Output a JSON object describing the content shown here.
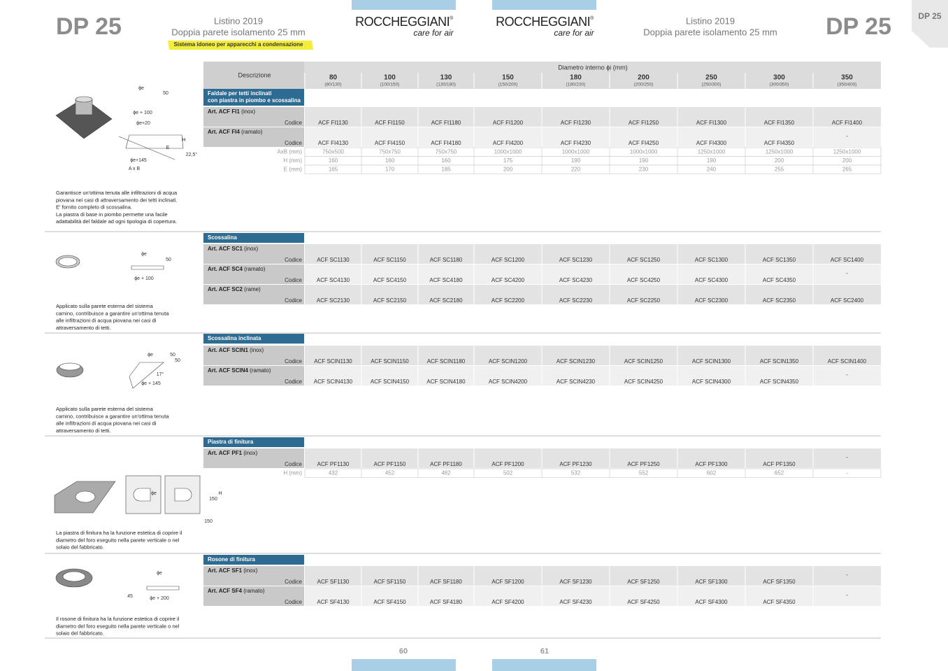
{
  "header": {
    "left": {
      "code": "DP 25",
      "title": "Listino 2019",
      "subtitle": "Doppia parete isolamento 25 mm",
      "badge": "Sistema idoneo per apparecchi a condensazione"
    },
    "brands": [
      {
        "name": "ROCCHEGGIANI",
        "mark": "®",
        "tagline": "care for air"
      },
      {
        "name": "ROCCHEGGIANI",
        "mark": "®",
        "tagline": "care for air"
      }
    ],
    "right": {
      "code": "DP 25",
      "title": "Listino 2019",
      "subtitle": "Doppia parete isolamento 25 mm"
    },
    "tab": "DP 25"
  },
  "table_header": {
    "description": "Descrizione",
    "diameter": "Diametro interno ϕi (mm)",
    "diameters": [
      {
        "value": "80",
        "range": "(80/130)"
      },
      {
        "value": "100",
        "range": "(100/150)"
      },
      {
        "value": "130",
        "range": "(130/180)"
      },
      {
        "value": "150",
        "range": "(150/200)"
      },
      {
        "value": "180",
        "range": "(180/230)"
      },
      {
        "value": "200",
        "range": "(200/250)"
      },
      {
        "value": "250",
        "range": "(250/300)"
      },
      {
        "value": "300",
        "range": "(300/350)"
      },
      {
        "value": "350",
        "range": "(350/400)"
      }
    ]
  },
  "sections": [
    {
      "title": [
        "Faldale per tetti inclinati",
        "con piastra in piombo e scossalina"
      ],
      "rows": [
        {
          "article": "Art. ACF FI1",
          "material": " (inox)",
          "code_label": "Codice",
          "codes": [
            "ACF FI1130",
            "ACF FI1150",
            "ACF FI1180",
            "ACF FI1200",
            "ACF FI1230",
            "ACF FI1250",
            "ACF FI1300",
            "ACF FI1350",
            "ACF FI1400"
          ]
        },
        {
          "article": "Art. ACF FI4",
          "material": " (ramato)",
          "code_label": "Codice",
          "codes": [
            "ACF FI4130",
            "ACF FI4150",
            "ACF FI4180",
            "ACF FI4200",
            "ACF FI4230",
            "ACF FI4250",
            "ACF FI4300",
            "ACF FI4350",
            "-"
          ]
        }
      ],
      "measures": [
        {
          "label": "AxB (mm)",
          "values": [
            "750x500",
            "750x750",
            "750x750",
            "1000x1000",
            "1000x1000",
            "1000x1000",
            "1250x1000",
            "1250x1000",
            "1250x1000"
          ]
        },
        {
          "label": "H (mm)",
          "values": [
            "160",
            "160",
            "160",
            "175",
            "190",
            "190",
            "190",
            "200",
            "200"
          ]
        },
        {
          "label": "E (mm)",
          "values": [
            "165",
            "170",
            "185",
            "200",
            "220",
            "230",
            "240",
            "255",
            "265"
          ]
        }
      ],
      "description": [
        "Garantisce un'ottima tenuta alle infiltrazioni di acqua",
        "piovana nei casi di attraversamento dei tetti inclinati.",
        "E' fornito completo di scossalina.",
        "La piastra di base in piombo permette una facile",
        "adattabilità del faldale ad ogni tipologia di copertura."
      ],
      "drawing_labels": [
        "ϕe",
        "50",
        "ϕe + 100",
        "ϕe+20",
        "H",
        "E",
        "22,5°",
        "ϕe+145",
        "A x B"
      ]
    },
    {
      "title": [
        "Scossalina"
      ],
      "rows": [
        {
          "article": "Art. ACF SC1",
          "material": " (inox)",
          "code_label": "Codice",
          "codes": [
            "ACF SC1130",
            "ACF SC1150",
            "ACF SC1180",
            "ACF SC1200",
            "ACF SC1230",
            "ACF SC1250",
            "ACF SC1300",
            "ACF SC1350",
            "ACF SC1400"
          ]
        },
        {
          "article": "Art. ACF SC4",
          "material": " (ramato)",
          "code_label": "Codice",
          "codes": [
            "ACF SC4130",
            "ACF SC4150",
            "ACF SC4180",
            "ACF SC4200",
            "ACF SC4230",
            "ACF SC4250",
            "ACF SC4300",
            "ACF SC4350",
            "-"
          ]
        },
        {
          "article": "Art. ACF SC2",
          "material": " (rame)",
          "code_label": "Codice",
          "codes": [
            "ACF SC2130",
            "ACF SC2150",
            "ACF SC2180",
            "ACF SC2200",
            "ACF SC2230",
            "ACF SC2250",
            "ACF SC2300",
            "ACF SC2350",
            "ACF SC2400"
          ]
        }
      ],
      "description": [
        "Applicato sulla parete esterna del sistema",
        "camino, contribuisce a garantire un'ottima tenuta",
        "alle infiltrazioni di acqua piovana nei casi di",
        "attraversamento di tetti."
      ],
      "drawing_labels": [
        "ϕe",
        "50",
        "ϕe + 100"
      ]
    },
    {
      "title": [
        "Scossalina inclinata"
      ],
      "rows": [
        {
          "article": "Art. ACF SCIN1",
          "material": " (inox)",
          "code_label": "Codice",
          "codes": [
            "ACF SCIN1130",
            "ACF SCIN1150",
            "ACF SCIN1180",
            "ACF SCIN1200",
            "ACF SCIN1230",
            "ACF SCIN1250",
            "ACF SCIN1300",
            "ACF SCIN1350",
            "ACF SCIN1400"
          ]
        },
        {
          "article": "Art. ACF SCIN4",
          "material": " (ramato)",
          "code_label": "Codice",
          "codes": [
            "ACF SCIN4130",
            "ACF SCIN4150",
            "ACF SCIN4180",
            "ACF SCIN4200",
            "ACF SCIN4230",
            "ACF SCIN4250",
            "ACF SCIN4300",
            "ACF SCIN4350",
            "-"
          ]
        }
      ],
      "description": [
        "Applicato sulla parete esterna del sistema",
        "camino, contribuisce a garantire un'ottima tenuta",
        "alle infiltrazioni di acqua piovana nei casi di",
        "attraversamento di tetti."
      ],
      "drawing_labels": [
        "ϕe",
        "50",
        "50",
        "17°",
        "ϕe + 145"
      ]
    },
    {
      "title": [
        "Piastra di finitura"
      ],
      "rows": [
        {
          "article": "Art. ACF PF1",
          "material": " (inox)",
          "code_label": "Codice",
          "codes": [
            "ACF PF1130",
            "ACF PF1150",
            "ACF PF1180",
            "ACF PF1200",
            "ACF PF1230",
            "ACF PF1250",
            "ACF PF1300",
            "ACF PF1350",
            "-"
          ]
        }
      ],
      "measures": [
        {
          "label": "H (mm)",
          "values": [
            "432",
            "452",
            "482",
            "502",
            "532",
            "552",
            "602",
            "652",
            "-"
          ]
        }
      ],
      "description": [
        "La piastra di finitura ha la funzione estetica di coprire il",
        "diametro del foro eseguito nella parete verticale o nel",
        "solaio del fabbricato."
      ],
      "drawing_labels": [
        "ϕe",
        "150",
        "H",
        "150"
      ]
    },
    {
      "title": [
        "Rosone di finitura"
      ],
      "rows": [
        {
          "article": "Art. ACF SF1",
          "material": " (inox)",
          "code_label": "Codice",
          "codes": [
            "ACF SF1130",
            "ACF SF1150",
            "ACF SF1180",
            "ACF SF1200",
            "ACF SF1230",
            "ACF SF1250",
            "ACF SF1300",
            "ACF SF1350",
            "-"
          ]
        },
        {
          "article": "Art. ACF SF4",
          "material": " (ramato)",
          "code_label": "Codice",
          "codes": [
            "ACF SF4130",
            "ACF SF4150",
            "ACF SF4180",
            "ACF SF4200",
            "ACF SF4230",
            "ACF SF4250",
            "ACF SF4300",
            "ACF SF4350",
            "-"
          ]
        }
      ],
      "description": [
        "Il rosone di finitura ha la funzione estetica di coprire il",
        "diametro del foro eseguito nella parete verticale o nel",
        "solaio del fabbricato."
      ],
      "drawing_labels": [
        "ϕe",
        "45",
        "ϕe + 200"
      ]
    }
  ],
  "footer": {
    "pages": [
      "60",
      "61"
    ]
  }
}
